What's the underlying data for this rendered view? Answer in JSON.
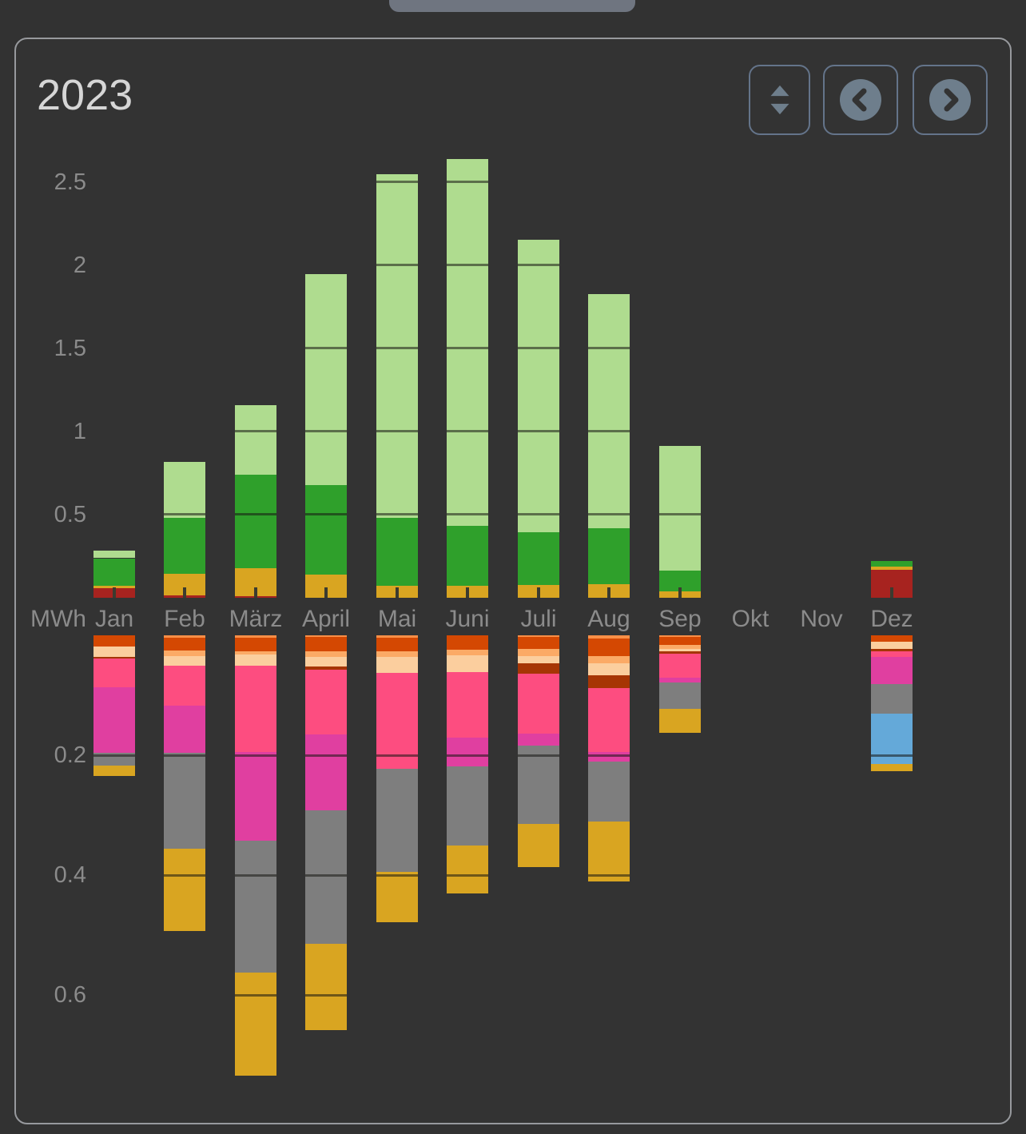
{
  "page": {
    "title": "2023"
  },
  "toolbar": {
    "buttons": [
      {
        "name": "sort-button",
        "icon": "up-down-triangles-icon"
      },
      {
        "name": "prev-button",
        "icon": "chevron-left-circle-icon"
      },
      {
        "name": "next-button",
        "icon": "chevron-right-circle-icon"
      }
    ]
  },
  "chart_data": {
    "type": "bar",
    "subtype": "diverging-stacked-columns",
    "title": "2023",
    "ylabel": "MWh",
    "unit": "MWh",
    "legend": "none (colors encode series)",
    "grid": "dark gridlines drawn across bars only",
    "upper_axis": {
      "ticks": [
        0.5,
        1,
        1.5,
        2,
        2.5
      ],
      "tick_labels": [
        "0.5",
        "1",
        "1.5",
        "2",
        "2.5"
      ],
      "range": [
        0,
        2.7
      ],
      "grid_interval": 0.5
    },
    "lower_axis": {
      "ticks": [
        0.2,
        0.4,
        0.6
      ],
      "tick_labels": [
        "0.2",
        "0.4",
        "0.6"
      ],
      "range": [
        0,
        0.75
      ],
      "grid_interval": 0.2
    },
    "categories": [
      "Jan",
      "Feb",
      "März",
      "April",
      "Mai",
      "Juni",
      "Juli",
      "Aug",
      "Sep",
      "Okt",
      "Nov",
      "Dez"
    ],
    "colors": {
      "lightgreen": "#afdc8f",
      "green": "#2fa02b",
      "gold": "#d9a521",
      "darkred": "#a7231f",
      "orange": "#f98f47",
      "darkorange": "#d44802",
      "salmon": "#fbaa66",
      "peach": "#fbce9e",
      "darkred2": "#a63504",
      "hotpink": "#fd4d80",
      "magenta": "#e03fa0",
      "gray": "#7e7e7e",
      "blue": "#64a9d9"
    },
    "months": [
      {
        "label": "Jan",
        "above": [
          [
            "darkred",
            0.06
          ],
          [
            "gold",
            0.01
          ],
          [
            "green",
            0.168
          ],
          [
            "lightgreen",
            0.045
          ]
        ],
        "below": [
          [
            "darkorange",
            0.019
          ],
          [
            "peach",
            0.017
          ],
          [
            "darkred2",
            0.003
          ],
          [
            "hotpink",
            0.048
          ],
          [
            "magenta",
            0.109
          ],
          [
            "gray",
            0.021
          ],
          [
            "gold",
            0.018
          ]
        ]
      },
      {
        "label": "Feb",
        "above": [
          [
            "darkred",
            0.015
          ],
          [
            "gold",
            0.13
          ],
          [
            "green",
            0.337
          ],
          [
            "lightgreen",
            0.337
          ]
        ],
        "below": [
          [
            "orange",
            0.004
          ],
          [
            "darkorange",
            0.021
          ],
          [
            "salmon",
            0.009
          ],
          [
            "peach",
            0.016
          ],
          [
            "hotpink",
            0.067
          ],
          [
            "magenta",
            0.079
          ],
          [
            "gray",
            0.16
          ],
          [
            "gold",
            0.137
          ]
        ]
      },
      {
        "label": "März",
        "above": [
          [
            "darkred",
            0.008
          ],
          [
            "gold",
            0.168
          ],
          [
            "green",
            0.563
          ],
          [
            "lightgreen",
            0.418
          ]
        ],
        "below": [
          [
            "orange",
            0.004
          ],
          [
            "darkorange",
            0.023
          ],
          [
            "salmon",
            0.005
          ],
          [
            "peach",
            0.019
          ],
          [
            "hotpink",
            0.143
          ],
          [
            "magenta",
            0.149
          ],
          [
            "gray",
            0.22
          ],
          [
            "gold",
            0.171
          ]
        ]
      },
      {
        "label": "April",
        "above": [
          [
            "gold",
            0.139
          ],
          [
            "green",
            0.538
          ],
          [
            "lightgreen",
            1.269
          ]
        ],
        "below": [
          [
            "orange",
            0.003
          ],
          [
            "darkorange",
            0.024
          ],
          [
            "salmon",
            0.009
          ],
          [
            "peach",
            0.016
          ],
          [
            "darkred2",
            0.005
          ],
          [
            "hotpink",
            0.108
          ],
          [
            "magenta",
            0.127
          ],
          [
            "gray",
            0.223
          ],
          [
            "gold",
            0.144
          ]
        ]
      },
      {
        "label": "Mai",
        "above": [
          [
            "gold",
            0.072
          ],
          [
            "green",
            0.409
          ],
          [
            "lightgreen",
            2.067
          ]
        ],
        "below": [
          [
            "orange",
            0.004
          ],
          [
            "darkorange",
            0.023
          ],
          [
            "salmon",
            0.009
          ],
          [
            "peach",
            0.027
          ],
          [
            "hotpink",
            0.159
          ],
          [
            "gray",
            0.173
          ],
          [
            "gold",
            0.083
          ]
        ]
      },
      {
        "label": "Juni",
        "above": [
          [
            "gold",
            0.072
          ],
          [
            "green",
            0.361
          ],
          [
            "lightgreen",
            2.207
          ]
        ],
        "below": [
          [
            "darkorange",
            0.024
          ],
          [
            "salmon",
            0.009
          ],
          [
            "peach",
            0.028
          ],
          [
            "hotpink",
            0.109
          ],
          [
            "magenta",
            0.049
          ],
          [
            "gray",
            0.131
          ],
          [
            "gold",
            0.08
          ]
        ]
      },
      {
        "label": "Juli",
        "above": [
          [
            "gold",
            0.077
          ],
          [
            "green",
            0.317
          ],
          [
            "lightgreen",
            1.76
          ]
        ],
        "below": [
          [
            "orange",
            0.003
          ],
          [
            "darkorange",
            0.019
          ],
          [
            "salmon",
            0.012
          ],
          [
            "peach",
            0.013
          ],
          [
            "darkred2",
            0.017
          ],
          [
            "hotpink",
            0.1
          ],
          [
            "magenta",
            0.02
          ],
          [
            "gray",
            0.131
          ],
          [
            "gold",
            0.071
          ]
        ]
      },
      {
        "label": "Aug",
        "above": [
          [
            "gold",
            0.082
          ],
          [
            "green",
            0.337
          ],
          [
            "lightgreen",
            1.409
          ]
        ],
        "below": [
          [
            "orange",
            0.005
          ],
          [
            "darkorange",
            0.029
          ],
          [
            "salmon",
            0.013
          ],
          [
            "peach",
            0.02
          ],
          [
            "darkred2",
            0.021
          ],
          [
            "hotpink",
            0.107
          ],
          [
            "magenta",
            0.015
          ],
          [
            "gray",
            0.101
          ],
          [
            "gold",
            0.099
          ]
        ]
      },
      {
        "label": "Sep",
        "above": [
          [
            "gold",
            0.038
          ],
          [
            "green",
            0.125
          ],
          [
            "lightgreen",
            0.75
          ]
        ],
        "below": [
          [
            "orange",
            0.003
          ],
          [
            "darkorange",
            0.013
          ],
          [
            "salmon",
            0.007
          ],
          [
            "peach",
            0.004
          ],
          [
            "darkred2",
            0.003
          ],
          [
            "hotpink",
            0.041
          ],
          [
            "magenta",
            0.007
          ],
          [
            "gray",
            0.045
          ],
          [
            "gold",
            0.039
          ]
        ]
      },
      {
        "label": "Okt",
        "above": [],
        "below": []
      },
      {
        "label": "Nov",
        "above": [],
        "below": []
      },
      {
        "label": "Dez",
        "above": [
          [
            "darkred",
            0.168
          ],
          [
            "gold",
            0.019
          ],
          [
            "green",
            0.034
          ]
        ],
        "below": [
          [
            "darkorange",
            0.011
          ],
          [
            "peach",
            0.011
          ],
          [
            "darkred2",
            0.005
          ],
          [
            "hotpink",
            0.009
          ],
          [
            "magenta",
            0.045
          ],
          [
            "gray",
            0.049
          ],
          [
            "blue",
            0.085
          ],
          [
            "gold",
            0.011
          ]
        ]
      }
    ]
  }
}
